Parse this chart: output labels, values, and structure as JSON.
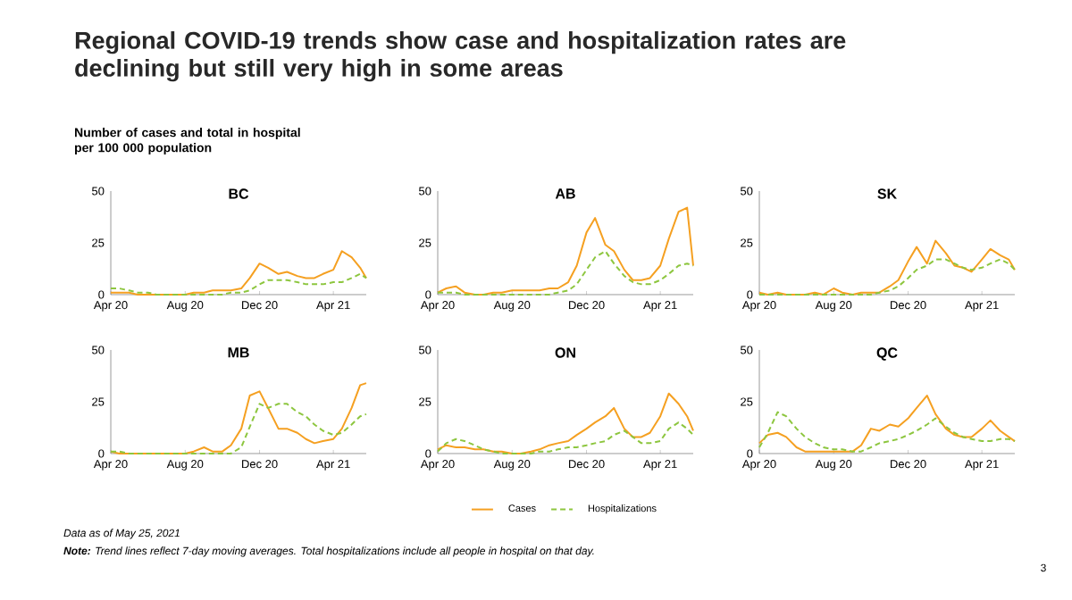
{
  "chart_data": [
    {
      "type": "line",
      "title": "BC",
      "ylabel": "Number of cases and total in hospital per 100 000 population",
      "annotations": [
        "Regional COVID-19 trends show case and hospitalization rates are declining but still very high in some areas",
        "Data as of May 25, 2021",
        "**Note:** Trend lines reflect 7-day moving averages. Total hospitalizations include all people in hospital on that day.",
        "3"
      ],
      "x": [
        "2020-04-01",
        "2020-04-15",
        "2020-05-01",
        "2020-05-15",
        "2020-06-01",
        "2020-06-15",
        "2020-07-01",
        "2020-07-15",
        "2020-08-01",
        "2020-08-15",
        "2020-09-01",
        "2020-09-15",
        "2020-10-01",
        "2020-10-15",
        "2020-11-01",
        "2020-11-15",
        "2020-12-01",
        "2020-12-15",
        "2021-01-01",
        "2021-01-15",
        "2021-02-01",
        "2021-02-15",
        "2021-03-01",
        "2021-03-15",
        "2021-04-01",
        "2021-04-15",
        "2021-05-01",
        "2021-05-15",
        "2021-05-25"
      ],
      "xlim": [
        "2020-04-01",
        "2021-05-25"
      ],
      "xticks": [
        {
          "value": "2020-04-01",
          "label": "Apr 20"
        },
        {
          "value": "2020-08-01",
          "label": "Aug 20"
        },
        {
          "value": "2020-12-01",
          "label": "Dec 20"
        },
        {
          "value": "2021-04-01",
          "label": "Apr 21"
        }
      ],
      "ylim": [
        0,
        50
      ],
      "yticks": [
        0,
        25,
        50
      ],
      "marker": "none",
      "series": [
        {
          "color": "#f5a021",
          "line_style": "solid",
          "values": [
            1,
            1,
            1,
            0,
            0,
            0,
            0,
            0,
            0,
            1,
            1,
            2,
            2,
            2,
            3,
            8,
            15,
            13,
            10,
            11,
            9,
            8,
            8,
            10,
            12,
            21,
            18,
            13,
            8
          ]
        },
        {
          "color": "#8dc63f",
          "line_style": "dashed",
          "values": [
            3,
            3,
            2,
            1,
            1,
            0,
            0,
            0,
            0,
            0,
            0,
            0,
            0,
            1,
            1,
            2,
            5,
            7,
            7,
            7,
            6,
            5,
            5,
            5,
            6,
            6,
            8,
            10,
            8
          ]
        }
      ]
    },
    {
      "type": "line",
      "title": "AB",
      "x": [
        "2020-04-01",
        "2020-04-15",
        "2020-05-01",
        "2020-05-15",
        "2020-06-01",
        "2020-06-15",
        "2020-07-01",
        "2020-07-15",
        "2020-08-01",
        "2020-08-15",
        "2020-09-01",
        "2020-09-15",
        "2020-10-01",
        "2020-10-15",
        "2020-11-01",
        "2020-11-15",
        "2020-12-01",
        "2020-12-15",
        "2021-01-01",
        "2021-01-15",
        "2021-02-01",
        "2021-02-15",
        "2021-03-01",
        "2021-03-15",
        "2021-04-01",
        "2021-04-15",
        "2021-05-01",
        "2021-05-15",
        "2021-05-25"
      ],
      "xlim": [
        "2020-04-01",
        "2021-05-25"
      ],
      "xticks": [
        {
          "value": "2020-04-01",
          "label": "Apr 20"
        },
        {
          "value": "2020-08-01",
          "label": "Aug 20"
        },
        {
          "value": "2020-12-01",
          "label": "Dec 20"
        },
        {
          "value": "2021-04-01",
          "label": "Apr 21"
        }
      ],
      "ylim": [
        0,
        50
      ],
      "yticks": [
        0,
        25,
        50
      ],
      "marker": "none",
      "series": [
        {
          "color": "#f5a021",
          "line_style": "solid",
          "values": [
            1,
            3,
            4,
            1,
            0,
            0,
            1,
            1,
            2,
            2,
            2,
            2,
            3,
            3,
            6,
            14,
            30,
            37,
            24,
            21,
            12,
            7,
            7,
            8,
            14,
            27,
            40,
            42,
            14
          ]
        },
        {
          "color": "#8dc63f",
          "line_style": "dashed",
          "values": [
            1,
            1,
            1,
            0,
            0,
            0,
            0,
            0,
            0,
            0,
            0,
            0,
            0,
            1,
            2,
            5,
            12,
            18,
            21,
            15,
            9,
            6,
            5,
            5,
            7,
            10,
            14,
            15,
            14
          ]
        }
      ]
    },
    {
      "type": "line",
      "title": "SK",
      "x": [
        "2020-04-01",
        "2020-04-15",
        "2020-05-01",
        "2020-05-15",
        "2020-06-01",
        "2020-06-15",
        "2020-07-01",
        "2020-07-15",
        "2020-08-01",
        "2020-08-15",
        "2020-09-01",
        "2020-09-15",
        "2020-10-01",
        "2020-10-15",
        "2020-11-01",
        "2020-11-15",
        "2020-12-01",
        "2020-12-15",
        "2021-01-01",
        "2021-01-15",
        "2021-02-01",
        "2021-02-15",
        "2021-03-01",
        "2021-03-15",
        "2021-04-01",
        "2021-04-15",
        "2021-05-01",
        "2021-05-15",
        "2021-05-25"
      ],
      "xlim": [
        "2020-04-01",
        "2021-05-25"
      ],
      "xticks": [
        {
          "value": "2020-04-01",
          "label": "Apr 20"
        },
        {
          "value": "2020-08-01",
          "label": "Aug 20"
        },
        {
          "value": "2020-12-01",
          "label": "Dec 20"
        },
        {
          "value": "2021-04-01",
          "label": "Apr 21"
        }
      ],
      "ylim": [
        0,
        50
      ],
      "yticks": [
        0,
        25,
        50
      ],
      "marker": "none",
      "series": [
        {
          "color": "#f5a021",
          "line_style": "solid",
          "values": [
            1,
            0,
            1,
            0,
            0,
            0,
            1,
            0,
            3,
            1,
            0,
            1,
            1,
            1,
            4,
            7,
            16,
            23,
            15,
            26,
            20,
            14,
            13,
            11,
            17,
            22,
            19,
            17,
            12
          ]
        },
        {
          "color": "#8dc63f",
          "line_style": "dashed",
          "values": [
            0,
            0,
            0,
            0,
            0,
            0,
            0,
            0,
            0,
            0,
            0,
            0,
            0,
            1,
            2,
            4,
            8,
            12,
            14,
            17,
            17,
            15,
            13,
            12,
            13,
            15,
            17,
            15,
            12
          ]
        }
      ]
    },
    {
      "type": "line",
      "title": "MB",
      "x": [
        "2020-04-01",
        "2020-04-15",
        "2020-05-01",
        "2020-05-15",
        "2020-06-01",
        "2020-06-15",
        "2020-07-01",
        "2020-07-15",
        "2020-08-01",
        "2020-08-15",
        "2020-09-01",
        "2020-09-15",
        "2020-10-01",
        "2020-10-15",
        "2020-11-01",
        "2020-11-15",
        "2020-12-01",
        "2020-12-15",
        "2021-01-01",
        "2021-01-15",
        "2021-02-01",
        "2021-02-15",
        "2021-03-01",
        "2021-03-15",
        "2021-04-01",
        "2021-04-15",
        "2021-05-01",
        "2021-05-15",
        "2021-05-25"
      ],
      "xlim": [
        "2020-04-01",
        "2021-05-25"
      ],
      "xticks": [
        {
          "value": "2020-04-01",
          "label": "Apr 20"
        },
        {
          "value": "2020-08-01",
          "label": "Aug 20"
        },
        {
          "value": "2020-12-01",
          "label": "Dec 20"
        },
        {
          "value": "2021-04-01",
          "label": "Apr 21"
        }
      ],
      "ylim": [
        0,
        50
      ],
      "yticks": [
        0,
        25,
        50
      ],
      "marker": "none",
      "series": [
        {
          "color": "#f5a021",
          "line_style": "solid",
          "values": [
            1,
            0,
            0,
            0,
            0,
            0,
            0,
            0,
            0,
            1,
            3,
            1,
            1,
            4,
            12,
            28,
            30,
            22,
            12,
            12,
            10,
            7,
            5,
            6,
            7,
            12,
            22,
            33,
            34
          ]
        },
        {
          "color": "#8dc63f",
          "line_style": "dashed",
          "values": [
            1,
            1,
            0,
            0,
            0,
            0,
            0,
            0,
            0,
            0,
            0,
            0,
            0,
            0,
            3,
            13,
            24,
            22,
            24,
            24,
            20,
            18,
            14,
            11,
            9,
            10,
            14,
            18,
            19
          ]
        }
      ]
    },
    {
      "type": "line",
      "title": "ON",
      "legend": "bottom",
      "x": [
        "2020-04-01",
        "2020-04-15",
        "2020-05-01",
        "2020-05-15",
        "2020-06-01",
        "2020-06-15",
        "2020-07-01",
        "2020-07-15",
        "2020-08-01",
        "2020-08-15",
        "2020-09-01",
        "2020-09-15",
        "2020-10-01",
        "2020-10-15",
        "2020-11-01",
        "2020-11-15",
        "2020-12-01",
        "2020-12-15",
        "2021-01-01",
        "2021-01-15",
        "2021-02-01",
        "2021-02-15",
        "2021-03-01",
        "2021-03-15",
        "2021-04-01",
        "2021-04-15",
        "2021-05-01",
        "2021-05-15",
        "2021-05-25"
      ],
      "xlim": [
        "2020-04-01",
        "2021-05-25"
      ],
      "xticks": [
        {
          "value": "2020-04-01",
          "label": "Apr 20"
        },
        {
          "value": "2020-08-01",
          "label": "Aug 20"
        },
        {
          "value": "2020-12-01",
          "label": "Dec 20"
        },
        {
          "value": "2021-04-01",
          "label": "Apr 21"
        }
      ],
      "ylim": [
        0,
        50
      ],
      "yticks": [
        0,
        25,
        50
      ],
      "marker": "none",
      "series": [
        {
          "name": "Cases",
          "color": "#f5a021",
          "line_style": "solid",
          "values": [
            2,
            4,
            3,
            3,
            2,
            2,
            1,
            1,
            0,
            0,
            1,
            2,
            4,
            5,
            6,
            9,
            12,
            15,
            18,
            22,
            12,
            8,
            8,
            10,
            18,
            29,
            24,
            18,
            11
          ]
        },
        {
          "name": "Hospitalizations",
          "color": "#8dc63f",
          "line_style": "dashed",
          "values": [
            1,
            5,
            7,
            6,
            4,
            2,
            1,
            0,
            0,
            0,
            0,
            1,
            1,
            2,
            3,
            3,
            4,
            5,
            6,
            9,
            11,
            8,
            5,
            5,
            6,
            12,
            15,
            12,
            9
          ]
        }
      ]
    },
    {
      "type": "line",
      "title": "QC",
      "x": [
        "2020-04-01",
        "2020-04-15",
        "2020-05-01",
        "2020-05-15",
        "2020-06-01",
        "2020-06-15",
        "2020-07-01",
        "2020-07-15",
        "2020-08-01",
        "2020-08-15",
        "2020-09-01",
        "2020-09-15",
        "2020-10-01",
        "2020-10-15",
        "2020-11-01",
        "2020-11-15",
        "2020-12-01",
        "2020-12-15",
        "2021-01-01",
        "2021-01-15",
        "2021-02-01",
        "2021-02-15",
        "2021-03-01",
        "2021-03-15",
        "2021-04-01",
        "2021-04-15",
        "2021-05-01",
        "2021-05-15",
        "2021-05-25"
      ],
      "xlim": [
        "2020-04-01",
        "2021-05-25"
      ],
      "xticks": [
        {
          "value": "2020-04-01",
          "label": "Apr 20"
        },
        {
          "value": "2020-08-01",
          "label": "Aug 20"
        },
        {
          "value": "2020-12-01",
          "label": "Dec 20"
        },
        {
          "value": "2021-04-01",
          "label": "Apr 21"
        }
      ],
      "ylim": [
        0,
        50
      ],
      "yticks": [
        0,
        25,
        50
      ],
      "marker": "none",
      "series": [
        {
          "color": "#f5a021",
          "line_style": "solid",
          "values": [
            5,
            9,
            10,
            8,
            3,
            1,
            1,
            1,
            1,
            1,
            1,
            4,
            12,
            11,
            14,
            13,
            17,
            22,
            28,
            19,
            12,
            9,
            8,
            8,
            12,
            16,
            11,
            8,
            6
          ]
        },
        {
          "color": "#8dc63f",
          "line_style": "dashed",
          "values": [
            3,
            10,
            20,
            18,
            12,
            8,
            5,
            3,
            2,
            2,
            1,
            1,
            3,
            5,
            6,
            7,
            9,
            11,
            14,
            17,
            13,
            10,
            8,
            7,
            6,
            6,
            7,
            7,
            6
          ]
        }
      ]
    }
  ]
}
